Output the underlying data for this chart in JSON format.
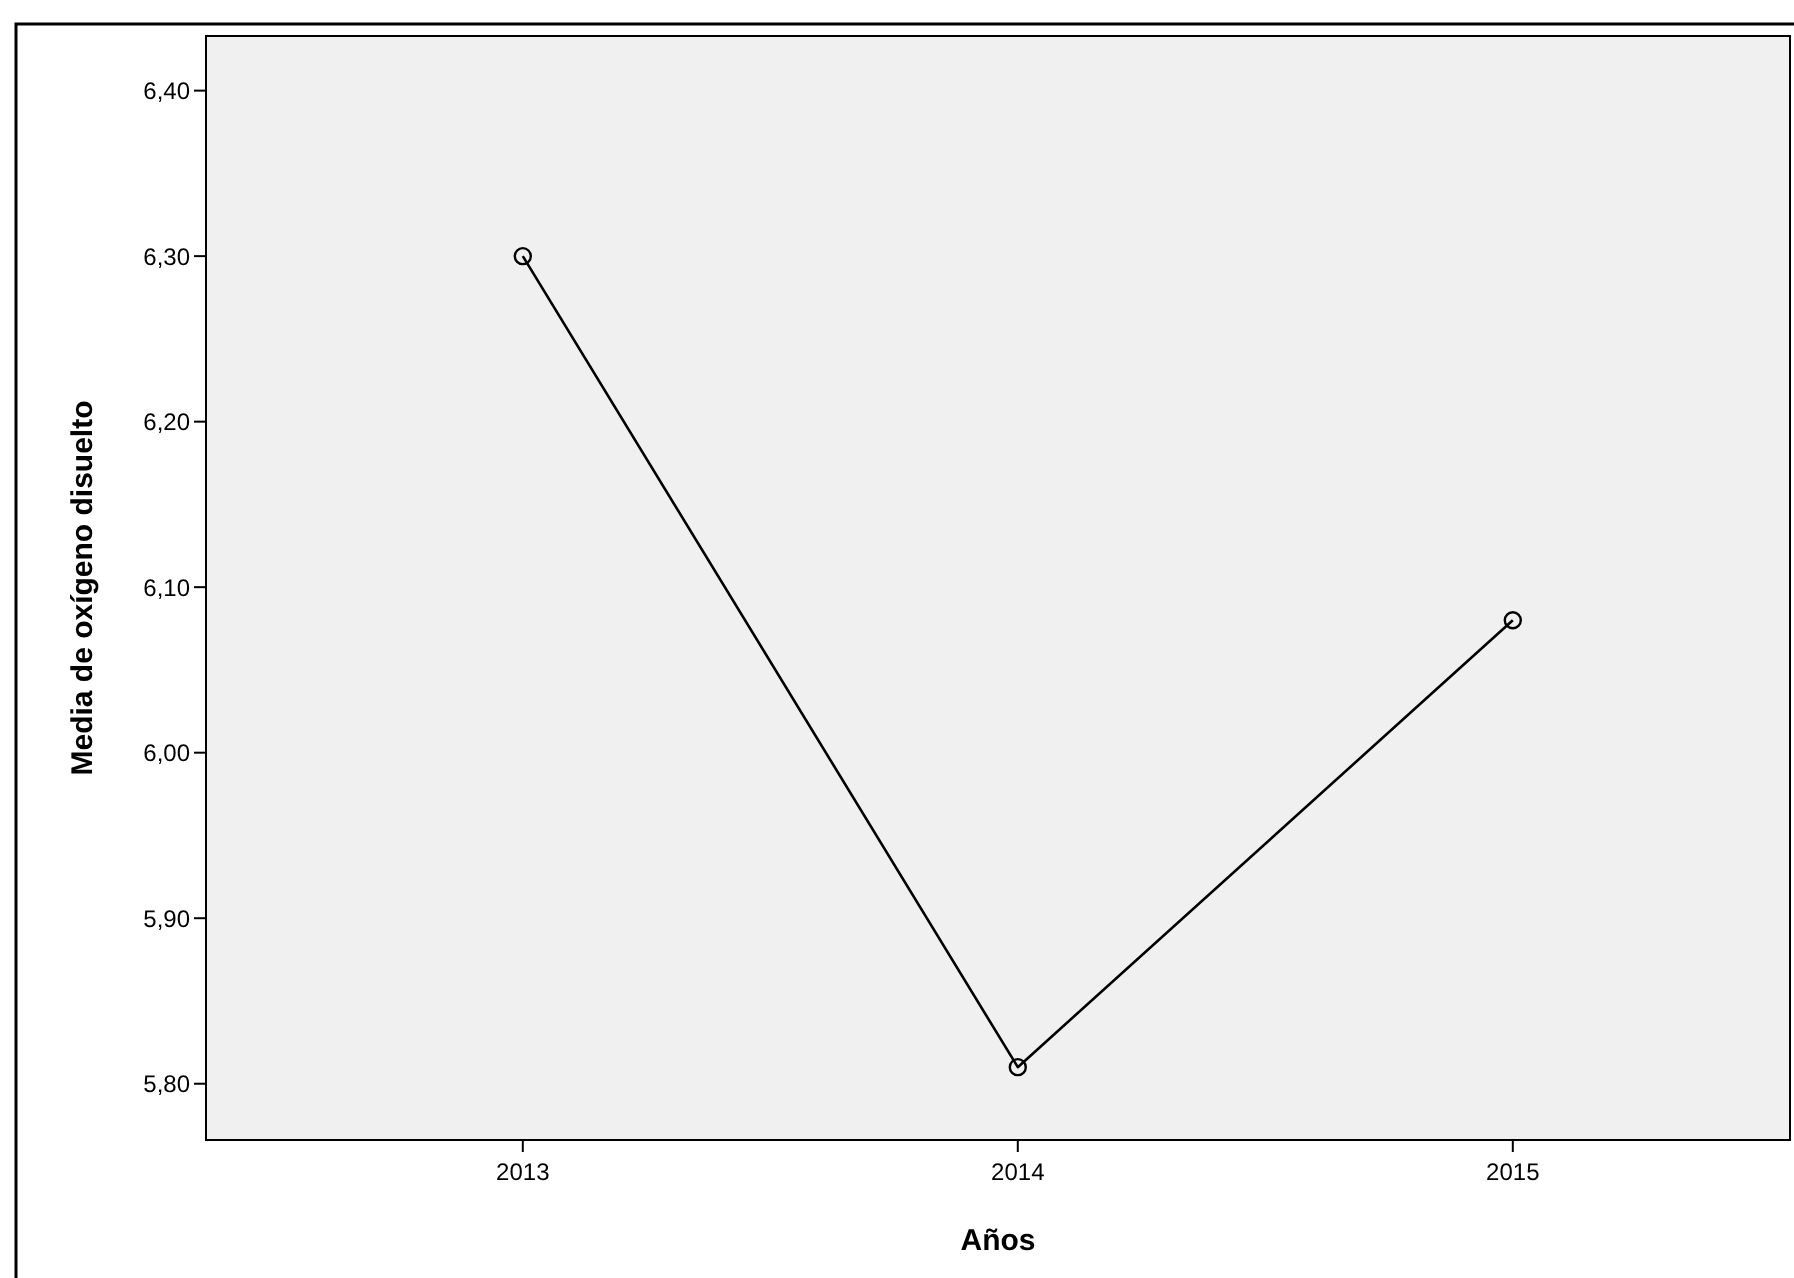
{
  "chart_data": {
    "type": "line",
    "xlabel": "Años",
    "ylabel": "Media de oxígeno disuelto",
    "categories": [
      "2013",
      "2014",
      "2015"
    ],
    "series": [
      {
        "color": "#000000",
        "values": [
          6.3,
          5.81,
          6.08
        ]
      }
    ],
    "ylim": [
      5.766,
      6.433
    ],
    "yticks": [
      {
        "value": 5.8,
        "label": "5,80"
      },
      {
        "value": 5.9,
        "label": "5,90"
      },
      {
        "value": 6.0,
        "label": "6,00"
      },
      {
        "value": 6.1,
        "label": "6,10"
      },
      {
        "value": 6.2,
        "label": "6,20"
      },
      {
        "value": 6.3,
        "label": "6,30"
      },
      {
        "value": 6.4,
        "label": "6,40"
      }
    ],
    "marker": "circle"
  }
}
